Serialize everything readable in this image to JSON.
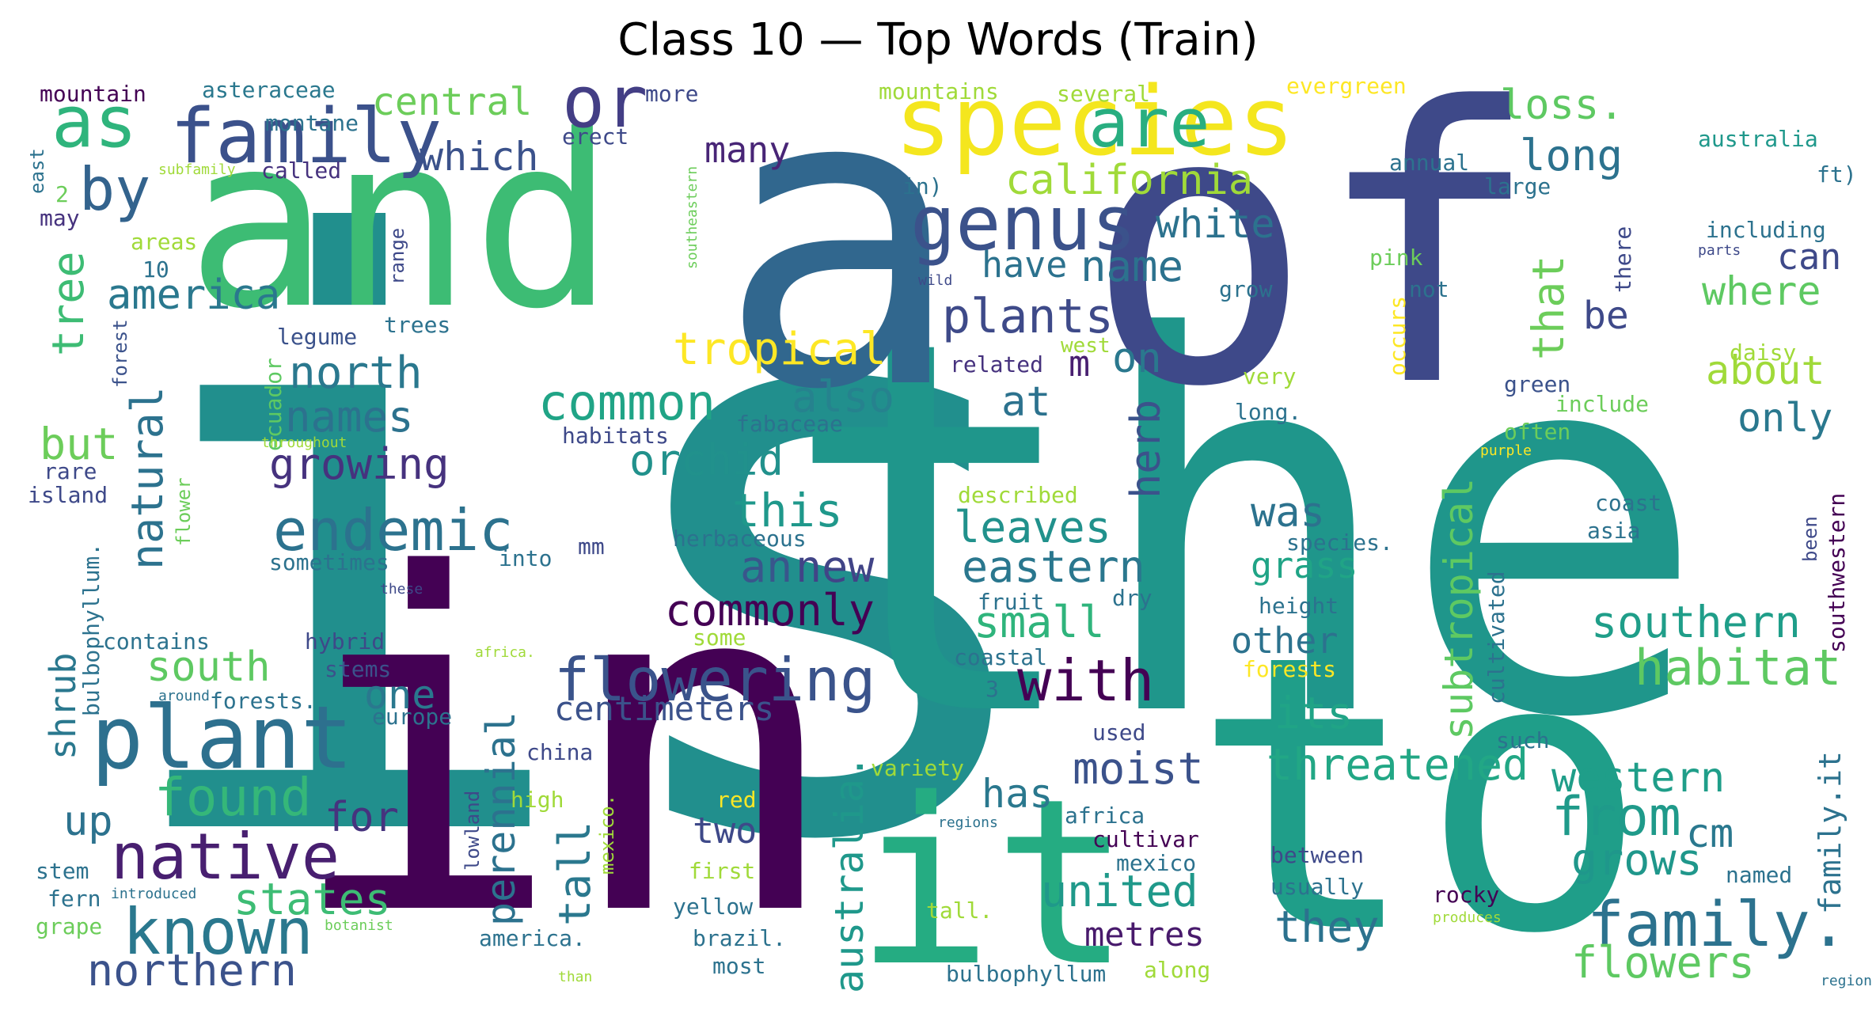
{
  "chart_data": {
    "type": "wordcloud",
    "title": "Class 10 — Top Words (Train)",
    "colormap": "viridis",
    "background": "#ffffff",
    "words": [
      {
        "text": "is",
        "weight": 1.0,
        "color": "#218f8d"
      },
      {
        "text": "the",
        "weight": 0.95,
        "color": "#1f968b"
      },
      {
        "text": "in",
        "weight": 0.92,
        "color": "#440154"
      },
      {
        "text": "of",
        "weight": 0.88,
        "color": "#3e4989"
      },
      {
        "text": "a",
        "weight": 0.86,
        "color": "#31678e"
      },
      {
        "text": "and",
        "weight": 0.72,
        "color": "#3dbc74"
      },
      {
        "text": "to",
        "weight": 0.7,
        "color": "#1f9e89"
      },
      {
        "text": "it",
        "weight": 0.55,
        "color": "#25ac82"
      },
      {
        "text": "species",
        "weight": 0.38,
        "color": "#f4e61e"
      },
      {
        "text": "plant",
        "weight": 0.3,
        "color": "#2d708e"
      },
      {
        "text": "family",
        "weight": 0.28,
        "color": "#3b518b"
      },
      {
        "text": "genus",
        "weight": 0.27,
        "color": "#3b528b"
      },
      {
        "text": "as",
        "weight": 0.27,
        "color": "#2fb47c"
      },
      {
        "text": "or",
        "weight": 0.27,
        "color": "#433e85"
      },
      {
        "text": "are",
        "weight": 0.26,
        "color": "#28ae80"
      },
      {
        "text": "native",
        "weight": 0.25,
        "color": "#481f70"
      },
      {
        "text": "known",
        "weight": 0.25,
        "color": "#2a788e"
      },
      {
        "text": "family.",
        "weight": 0.25,
        "color": "#2c728e"
      },
      {
        "text": "flowering",
        "weight": 0.23,
        "color": "#3a538b"
      },
      {
        "text": "endemic",
        "weight": 0.23,
        "color": "#2c728e"
      },
      {
        "text": "by",
        "weight": 0.22,
        "color": "#33638d"
      },
      {
        "text": "found",
        "weight": 0.2,
        "color": "#35b779"
      },
      {
        "text": "from",
        "weight": 0.2,
        "color": "#1f9a8a"
      },
      {
        "text": "with",
        "weight": 0.2,
        "color": "#440154"
      },
      {
        "text": "habitat",
        "weight": 0.19,
        "color": "#5ec962"
      },
      {
        "text": "common",
        "weight": 0.18,
        "color": "#20a486"
      },
      {
        "text": "plants",
        "weight": 0.17,
        "color": "#3e4a89"
      },
      {
        "text": "north",
        "weight": 0.16,
        "color": "#2a788e"
      },
      {
        "text": "tropical",
        "weight": 0.16,
        "color": "#fde725"
      },
      {
        "text": "california",
        "weight": 0.16,
        "color": "#a0da39"
      },
      {
        "text": "america",
        "weight": 0.15,
        "color": "#2a788e"
      },
      {
        "text": "growing",
        "weight": 0.15,
        "color": "#46327e"
      },
      {
        "text": "names",
        "weight": 0.15,
        "color": "#2c728e"
      },
      {
        "text": "orchid",
        "weight": 0.15,
        "color": "#21918c"
      },
      {
        "text": "central",
        "weight": 0.15,
        "color": "#6ccd5a"
      },
      {
        "text": "which",
        "weight": 0.15,
        "color": "#3b528b"
      },
      {
        "text": "white",
        "weight": 0.14,
        "color": "#2c728e"
      },
      {
        "text": "name",
        "weight": 0.14,
        "color": "#2c728e"
      },
      {
        "text": "long",
        "weight": 0.14,
        "color": "#2c728e"
      },
      {
        "text": "loss.",
        "weight": 0.14,
        "color": "#5ec962"
      },
      {
        "text": "also",
        "weight": 0.14,
        "color": "#26828e"
      },
      {
        "text": "this",
        "weight": 0.14,
        "color": "#1f988b"
      },
      {
        "text": "leaves",
        "weight": 0.14,
        "color": "#21918c"
      },
      {
        "text": "eastern",
        "weight": 0.14,
        "color": "#2a778e"
      },
      {
        "text": "small",
        "weight": 0.14,
        "color": "#2fb47c"
      },
      {
        "text": "commonly",
        "weight": 0.14,
        "color": "#440154"
      },
      {
        "text": "an",
        "weight": 0.14,
        "color": "#39568c"
      },
      {
        "text": "new",
        "weight": 0.14,
        "color": "#414487"
      },
      {
        "text": "states",
        "weight": 0.14,
        "color": "#3dbc74"
      },
      {
        "text": "northern",
        "weight": 0.14,
        "color": "#3b528b"
      },
      {
        "text": "united",
        "weight": 0.14,
        "color": "#1f998a"
      },
      {
        "text": "they",
        "weight": 0.14,
        "color": "#2c728e"
      },
      {
        "text": "flowers",
        "weight": 0.14,
        "color": "#5ec962"
      },
      {
        "text": "grows",
        "weight": 0.14,
        "color": "#1f978b"
      },
      {
        "text": "southern",
        "weight": 0.14,
        "color": "#1f9e89"
      },
      {
        "text": "threatened",
        "weight": 0.14,
        "color": "#22a785"
      },
      {
        "text": "its",
        "weight": 0.14,
        "color": "#20a486"
      },
      {
        "text": "moist",
        "weight": 0.14,
        "color": "#3b528b"
      },
      {
        "text": "western",
        "weight": 0.13,
        "color": "#1f9e89"
      },
      {
        "text": "where",
        "weight": 0.13,
        "color": "#5ec962"
      },
      {
        "text": "about",
        "weight": 0.13,
        "color": "#a0da39"
      },
      {
        "text": "only",
        "weight": 0.13,
        "color": "#2a788e"
      },
      {
        "text": "at",
        "weight": 0.13,
        "color": "#2c728e"
      },
      {
        "text": "has",
        "weight": 0.13,
        "color": "#2a788e"
      },
      {
        "text": "for",
        "weight": 0.13,
        "color": "#46337e"
      },
      {
        "text": "up",
        "weight": 0.13,
        "color": "#2c728e"
      },
      {
        "text": "but",
        "weight": 0.13,
        "color": "#6ccd5a"
      },
      {
        "text": "south",
        "weight": 0.13,
        "color": "#5ec962"
      },
      {
        "text": "one",
        "weight": 0.13,
        "color": "#2a788e"
      },
      {
        "text": "be",
        "weight": 0.13,
        "color": "#3e4989"
      },
      {
        "text": "was",
        "weight": 0.13,
        "color": "#2c728e"
      },
      {
        "text": "on",
        "weight": 0.13,
        "color": "#2a788e"
      },
      {
        "text": "have",
        "weight": 0.12,
        "color": "#2c728e"
      },
      {
        "text": "can",
        "weight": 0.12,
        "color": "#3e4989"
      },
      {
        "text": "many",
        "weight": 0.12,
        "color": "#482576"
      },
      {
        "text": "other",
        "weight": 0.12,
        "color": "#2c728e"
      },
      {
        "text": "two",
        "weight": 0.12,
        "color": "#3e4989"
      },
      {
        "text": "cm",
        "weight": 0.12,
        "color": "#2a788e"
      },
      {
        "text": "metres",
        "weight": 0.12,
        "color": "#481a6c"
      },
      {
        "text": "grass",
        "weight": 0.12,
        "color": "#20a486"
      },
      {
        "text": "centimeters",
        "weight": 0.12,
        "color": "#3b528b"
      },
      {
        "text": "m",
        "weight": 0.12,
        "color": "#481f70"
      },
      {
        "text": "tree",
        "weight": 0.12,
        "color": "#3dbc74"
      },
      {
        "text": "shrub",
        "weight": 0.12,
        "color": "#2a788e"
      },
      {
        "text": "natural",
        "weight": 0.12,
        "color": "#2c728e"
      },
      {
        "text": "perennial",
        "weight": 0.12,
        "color": "#2c728e"
      },
      {
        "text": "tall",
        "weight": 0.12,
        "color": "#2a788e"
      },
      {
        "text": "australia.",
        "weight": 0.12,
        "color": "#1f988b"
      },
      {
        "text": "herb",
        "weight": 0.12,
        "color": "#3b528b"
      },
      {
        "text": "subtropical",
        "weight": 0.12,
        "color": "#5ec962"
      },
      {
        "text": "that",
        "weight": 0.12,
        "color": "#6ccd5a"
      },
      {
        "text": "family.it",
        "weight": 0.12,
        "color": "#2c728e"
      },
      {
        "text": "mountain",
        "weight": 0.07,
        "color": "#440154"
      },
      {
        "text": "asteraceae",
        "weight": 0.07,
        "color": "#2a788e"
      },
      {
        "text": "more",
        "weight": 0.07,
        "color": "#3e4989"
      },
      {
        "text": "mountains",
        "weight": 0.07,
        "color": "#a0da39"
      },
      {
        "text": "several",
        "weight": 0.07,
        "color": "#a0da39"
      },
      {
        "text": "evergreen",
        "weight": 0.07,
        "color": "#fde725"
      },
      {
        "text": "montane",
        "weight": 0.07,
        "color": "#2c728e"
      },
      {
        "text": "erect",
        "weight": 0.07,
        "color": "#3e4989"
      },
      {
        "text": "called",
        "weight": 0.07,
        "color": "#46327e"
      },
      {
        "text": "subfamily",
        "weight": 0.04,
        "color": "#a0da39"
      },
      {
        "text": "east",
        "weight": 0.07,
        "color": "#2c728e"
      },
      {
        "text": "may",
        "weight": 0.07,
        "color": "#46327e"
      },
      {
        "text": "2",
        "weight": 0.07,
        "color": "#6ccd5a"
      },
      {
        "text": "areas",
        "weight": 0.07,
        "color": "#a0da39"
      },
      {
        "text": "10",
        "weight": 0.07,
        "color": "#2c728e"
      },
      {
        "text": "range",
        "weight": 0.07,
        "color": "#3e4989"
      },
      {
        "text": "legume",
        "weight": 0.07,
        "color": "#3b528b"
      },
      {
        "text": "trees",
        "weight": 0.07,
        "color": "#2c728e"
      },
      {
        "text": "in)",
        "weight": 0.07,
        "color": "#2c728e"
      },
      {
        "text": "wild",
        "weight": 0.04,
        "color": "#3e4989"
      },
      {
        "text": "annual",
        "weight": 0.07,
        "color": "#2c728e"
      },
      {
        "text": "large",
        "weight": 0.07,
        "color": "#2c728e"
      },
      {
        "text": "australia",
        "weight": 0.07,
        "color": "#1f988b"
      },
      {
        "text": "ft)",
        "weight": 0.07,
        "color": "#2c728e"
      },
      {
        "text": "including",
        "weight": 0.07,
        "color": "#2c728e"
      },
      {
        "text": "parts",
        "weight": 0.04,
        "color": "#3e4989"
      },
      {
        "text": "daisy",
        "weight": 0.07,
        "color": "#a0da39"
      },
      {
        "text": "southeastern",
        "weight": 0.04,
        "color": "#6ccd5a"
      },
      {
        "text": "pink",
        "weight": 0.07,
        "color": "#6ccd5a"
      },
      {
        "text": "not",
        "weight": 0.07,
        "color": "#2c728e"
      },
      {
        "text": "grow",
        "weight": 0.07,
        "color": "#2c728e"
      },
      {
        "text": "there",
        "weight": 0.07,
        "color": "#3e4989"
      },
      {
        "text": "occurs",
        "weight": 0.07,
        "color": "#fde725"
      },
      {
        "text": "west",
        "weight": 0.07,
        "color": "#a0da39"
      },
      {
        "text": "related",
        "weight": 0.07,
        "color": "#46327e"
      },
      {
        "text": "very",
        "weight": 0.07,
        "color": "#a0da39"
      },
      {
        "text": "long.",
        "weight": 0.07,
        "color": "#2c728e"
      },
      {
        "text": "green",
        "weight": 0.07,
        "color": "#3b528b"
      },
      {
        "text": "include",
        "weight": 0.07,
        "color": "#6ccd5a"
      },
      {
        "text": "often",
        "weight": 0.07,
        "color": "#6ccd5a"
      },
      {
        "text": "purple",
        "weight": 0.04,
        "color": "#fde725"
      },
      {
        "text": "ecuador",
        "weight": 0.07,
        "color": "#5ec962"
      },
      {
        "text": "forest",
        "weight": 0.07,
        "color": "#3b528b"
      },
      {
        "text": "habitats",
        "weight": 0.07,
        "color": "#3e4989"
      },
      {
        "text": "fabaceae",
        "weight": 0.07,
        "color": "#2c728e"
      },
      {
        "text": "throughout",
        "weight": 0.04,
        "color": "#a0da39"
      },
      {
        "text": "rare",
        "weight": 0.07,
        "color": "#3e4989"
      },
      {
        "text": "island",
        "weight": 0.07,
        "color": "#3e4989"
      },
      {
        "text": "flower",
        "weight": 0.07,
        "color": "#6ccd5a"
      },
      {
        "text": "bulbophyllum.",
        "weight": 0.07,
        "color": "#2c728e"
      },
      {
        "text": "described",
        "weight": 0.07,
        "color": "#a0da39"
      },
      {
        "text": "herbaceous",
        "weight": 0.07,
        "color": "#2c728e"
      },
      {
        "text": "mm",
        "weight": 0.07,
        "color": "#3e4989"
      },
      {
        "text": "into",
        "weight": 0.07,
        "color": "#2c728e"
      },
      {
        "text": "sometimes",
        "weight": 0.07,
        "color": "#2c728e"
      },
      {
        "text": "these",
        "weight": 0.04,
        "color": "#3e4989"
      },
      {
        "text": "coast",
        "weight": 0.07,
        "color": "#2c728e"
      },
      {
        "text": "asia",
        "weight": 0.07,
        "color": "#2c728e"
      },
      {
        "text": "been",
        "weight": 0.07,
        "color": "#3e4989"
      },
      {
        "text": "southwestern",
        "weight": 0.07,
        "color": "#440154"
      },
      {
        "text": "species.",
        "weight": 0.07,
        "color": "#2c728e"
      },
      {
        "text": "height",
        "weight": 0.07,
        "color": "#2c728e"
      },
      {
        "text": "fruit",
        "weight": 0.07,
        "color": "#2c728e"
      },
      {
        "text": "dry",
        "weight": 0.07,
        "color": "#2c728e"
      },
      {
        "text": "cultivated",
        "weight": 0.07,
        "color": "#2c728e"
      },
      {
        "text": "contains",
        "weight": 0.07,
        "color": "#2c728e"
      },
      {
        "text": "hybrid",
        "weight": 0.07,
        "color": "#3e4989"
      },
      {
        "text": "some",
        "weight": 0.07,
        "color": "#a0da39"
      },
      {
        "text": "africa.",
        "weight": 0.04,
        "color": "#a0da39"
      },
      {
        "text": "stems",
        "weight": 0.07,
        "color": "#3b528b"
      },
      {
        "text": "coastal",
        "weight": 0.07,
        "color": "#2c728e"
      },
      {
        "text": "3",
        "weight": 0.07,
        "color": "#2c728e"
      },
      {
        "text": "forests",
        "weight": 0.07,
        "color": "#fde725"
      },
      {
        "text": "around",
        "weight": 0.04,
        "color": "#2c728e"
      },
      {
        "text": "forests.",
        "weight": 0.07,
        "color": "#2c728e"
      },
      {
        "text": "europe",
        "weight": 0.07,
        "color": "#2c728e"
      },
      {
        "text": "used",
        "weight": 0.07,
        "color": "#3e4989"
      },
      {
        "text": "such",
        "weight": 0.07,
        "color": "#2c728e"
      },
      {
        "text": "china",
        "weight": 0.07,
        "color": "#3e4989"
      },
      {
        "text": "variety",
        "weight": 0.07,
        "color": "#a0da39"
      },
      {
        "text": "high",
        "weight": 0.07,
        "color": "#a0da39"
      },
      {
        "text": "red",
        "weight": 0.07,
        "color": "#fde725"
      },
      {
        "text": "regions",
        "weight": 0.04,
        "color": "#2c728e"
      },
      {
        "text": "africa",
        "weight": 0.07,
        "color": "#2c728e"
      },
      {
        "text": "cultivar",
        "weight": 0.07,
        "color": "#440154"
      },
      {
        "text": "lowland",
        "weight": 0.07,
        "color": "#3e4989"
      },
      {
        "text": "mexico.",
        "weight": 0.07,
        "color": "#a0da39"
      },
      {
        "text": "first",
        "weight": 0.07,
        "color": "#a0da39"
      },
      {
        "text": "mexico",
        "weight": 0.07,
        "color": "#2c728e"
      },
      {
        "text": "between",
        "weight": 0.07,
        "color": "#3e4989"
      },
      {
        "text": "usually",
        "weight": 0.07,
        "color": "#2c728e"
      },
      {
        "text": "named",
        "weight": 0.07,
        "color": "#2c728e"
      },
      {
        "text": "rocky",
        "weight": 0.07,
        "color": "#440154"
      },
      {
        "text": "stem",
        "weight": 0.07,
        "color": "#2c728e"
      },
      {
        "text": "fern",
        "weight": 0.07,
        "color": "#2c728e"
      },
      {
        "text": "grape",
        "weight": 0.07,
        "color": "#6ccd5a"
      },
      {
        "text": "introduced",
        "weight": 0.04,
        "color": "#2c728e"
      },
      {
        "text": "botanist",
        "weight": 0.04,
        "color": "#6ccd5a"
      },
      {
        "text": "yellow",
        "weight": 0.07,
        "color": "#2c728e"
      },
      {
        "text": "tall.",
        "weight": 0.07,
        "color": "#a0da39"
      },
      {
        "text": "america.",
        "weight": 0.07,
        "color": "#2c728e"
      },
      {
        "text": "brazil.",
        "weight": 0.07,
        "color": "#2c728e"
      },
      {
        "text": "most",
        "weight": 0.07,
        "color": "#2c728e"
      },
      {
        "text": "produces",
        "weight": 0.04,
        "color": "#a0da39"
      },
      {
        "text": "than",
        "weight": 0.04,
        "color": "#a0da39"
      },
      {
        "text": "bulbophyllum",
        "weight": 0.07,
        "color": "#2c728e"
      },
      {
        "text": "along",
        "weight": 0.07,
        "color": "#a0da39"
      },
      {
        "text": "region",
        "weight": 0.04,
        "color": "#2c728e"
      }
    ]
  }
}
